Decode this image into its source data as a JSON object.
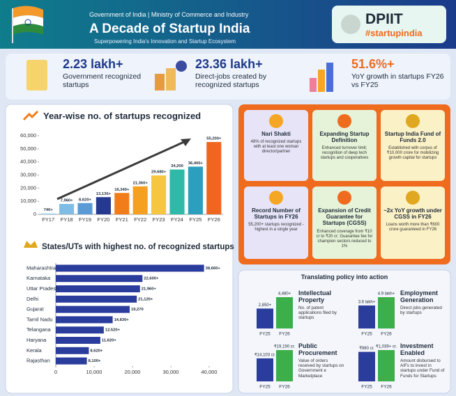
{
  "header": {
    "ministry": "Government of India | Ministry of Commerce and Industry",
    "title": "A Decade of Startup India",
    "subtitle": "Superpowering India's Innovation and Startup Ecosystem",
    "logo_text": "DPIIT",
    "hashtag": "#startupindia"
  },
  "stats": [
    {
      "value": "2.23 lakh+",
      "label": "Government recognized startups"
    },
    {
      "value": "23.36 lakh+",
      "label": "Direct-jobs created by recognized startups"
    },
    {
      "value": "51.6%+",
      "label": "YoY growth in startups FY26 vs FY25"
    }
  ],
  "cards": [
    {
      "title": "Nari Shakti",
      "text": "48% of recognized startups with at least one woman director/partner"
    },
    {
      "title": "Expanding Startup Definition",
      "text": "Enhanced turnover limit; recognition of deep tech startups and cooperatives"
    },
    {
      "title": "Startup India Fund of Funds 2.0",
      "text": "Established with corpus of ₹10,000 crore for mobilizing growth capital for startups"
    },
    {
      "title": "Record Number of Startups in FY26",
      "text": "55,200+ startups recognized - highest in a single year"
    },
    {
      "title": "Expansion of Credit Guarantee for Startups (CGSS)",
      "text": "Enhanced coverage from ₹10 cr to ₹20 cr; Guarantee fee for champion sectors reduced to 1%"
    },
    {
      "title": "~2x YoY growth under CGSS in FY26",
      "text": "Loans worth more than ₹600 crore guaranteed in FY26"
    }
  ],
  "policy_title": "Translating policy into action",
  "chart_data": [
    {
      "type": "bar",
      "title": "Year-wise no. of startups recognized",
      "categories": [
        "FY17",
        "FY18",
        "FY19",
        "FY20",
        "FY21",
        "FY22",
        "FY23",
        "FY24",
        "FY25",
        "FY26"
      ],
      "values": [
        740,
        7960,
        8620,
        13130,
        16340,
        21360,
        29680,
        34200,
        36400,
        55200
      ],
      "value_labels": [
        "740+",
        "7,960+",
        "8,620+",
        "13,130+",
        "16,340+",
        "21,360+",
        "29,680+",
        "34,200",
        "36,400+",
        "55,200+"
      ],
      "colors": [
        "#9fd3f0",
        "#7fbde6",
        "#5a9bd6",
        "#24398f",
        "#f07d1a",
        "#f5a020",
        "#f7c640",
        "#2fb9a8",
        "#2c9fbf",
        "#f0661e"
      ],
      "ylim": [
        0,
        60000
      ],
      "yticks": [
        0,
        {
          "value": 10000,
          "label": "10,000"
        },
        {
          "value": 20000,
          "label": "20,000"
        },
        {
          "value": 30000,
          "label": "30,000"
        },
        {
          "value": 40000,
          "label": "40,000"
        },
        {
          "value": 50000,
          "label": "50,000"
        },
        {
          "value": 60000,
          "label": "60,000"
        }
      ],
      "grid": false
    },
    {
      "type": "hbar",
      "title": "States/UTs with highest no. of recognized startups",
      "categories": [
        "Maharashtra",
        "Karnataka",
        "Uttar Pradesh",
        "Delhi",
        "Gujarat",
        "Tamil Nadu",
        "Telangana",
        "Haryana",
        "Kerala",
        "Rajasthan"
      ],
      "values": [
        38660,
        22600,
        21960,
        21120,
        19270,
        14830,
        12520,
        11620,
        8620,
        8100
      ],
      "value_labels": [
        "38,660+",
        "22,600+",
        "21,960+",
        "21,120+",
        "19,270",
        "14,830+",
        "12,520+",
        "11,620+",
        "8,620+",
        "8,100+"
      ],
      "color": "#2b3d9c",
      "xlim": [
        0,
        40000
      ],
      "xticks": [
        0,
        {
          "value": 10000,
          "label": "10,000"
        },
        {
          "value": 20000,
          "label": "20,000"
        },
        {
          "value": 30000,
          "label": "30,000"
        },
        {
          "value": 40000,
          "label": "40,000"
        }
      ],
      "grid": false
    },
    {
      "type": "mini",
      "title": "Intellectual Property",
      "subtitle": "No. of patent applications filed by startups",
      "categories": [
        "FY25",
        "FY26"
      ],
      "values": [
        2850,
        4480
      ],
      "value_labels": [
        "2,850+",
        "4,480+"
      ],
      "colors": [
        "#2b3d9c",
        "#3cae4a"
      ]
    },
    {
      "type": "mini",
      "title": "Employment Generation",
      "subtitle": "Direct jobs generated by startups",
      "categories": [
        "FY25",
        "FY26"
      ],
      "values": [
        3.6,
        4.9
      ],
      "value_labels": [
        "3.6 lakh+",
        "4.9 lakh+"
      ],
      "colors": [
        "#2b3d9c",
        "#3cae4a"
      ]
    },
    {
      "type": "mini",
      "title": "Public Procurement",
      "subtitle": "Value of orders received by startups on Government e Marketplace",
      "categories": [
        "FY25",
        "FY26"
      ],
      "values": [
        14103,
        19190
      ],
      "value_labels": [
        "₹14,103 cr.",
        "₹19,190 cr."
      ],
      "colors": [
        "#2b3d9c",
        "#3cae4a"
      ]
    },
    {
      "type": "mini",
      "title": "Investment Enabled",
      "subtitle": "Amount disbursed to AIFs to invest in startups under Fund of Funds for Startups",
      "categories": [
        "FY25",
        "FY26"
      ],
      "values": [
        980,
        1039
      ],
      "value_labels": [
        "₹980 cr.",
        "₹1,039+ cr."
      ],
      "colors": [
        "#2b3d9c",
        "#3cae4a"
      ]
    }
  ]
}
